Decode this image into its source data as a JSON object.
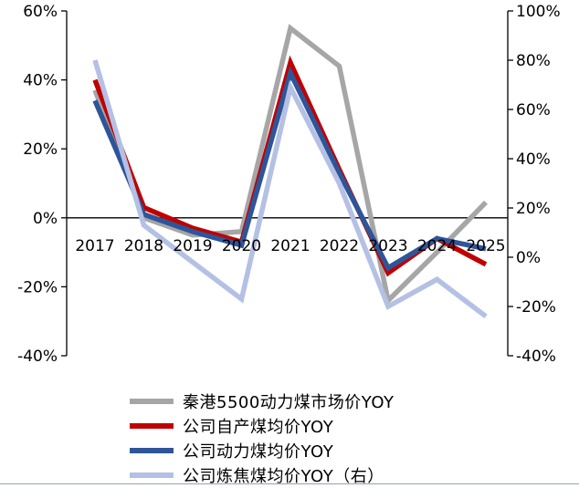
{
  "chart_data": {
    "type": "line",
    "categories": [
      "2017",
      "2018",
      "2019",
      "2020",
      "2021",
      "2022",
      "2023",
      "2024",
      "2025"
    ],
    "left_axis": {
      "ticks": [
        "60%",
        "40%",
        "20%",
        "0%",
        "-20%",
        "-40%"
      ],
      "ylim": [
        -40,
        60
      ]
    },
    "right_axis": {
      "ticks": [
        "100%",
        "80%",
        "60%",
        "40%",
        "20%",
        "0%",
        "-20%",
        "-40%"
      ],
      "ylim": [
        -40,
        100
      ]
    },
    "series": [
      {
        "name": "秦港5500动力煤市场价YOY",
        "axis": "left",
        "color": "#a6a6a6",
        "values": [
          37,
          0,
          -5,
          -4,
          55,
          44,
          -24,
          -10,
          4.5
        ]
      },
      {
        "name": "公司自产煤均价YOY",
        "axis": "left",
        "color": "#c00000",
        "values": [
          40,
          3,
          -3,
          -7,
          45,
          14,
          -16,
          -6,
          -13.5
        ]
      },
      {
        "name": "公司动力煤均价YOY",
        "axis": "left",
        "color": "#2e5599",
        "values": [
          34,
          1,
          -4,
          -8,
          42,
          13,
          -14.5,
          -6,
          -9
        ]
      },
      {
        "name": "公司炼焦煤均价YOY（右）",
        "axis": "right",
        "color": "#b4c0e4",
        "values": [
          80,
          13,
          -2,
          -17,
          69,
          30,
          -20,
          -9,
          -24
        ]
      }
    ]
  }
}
